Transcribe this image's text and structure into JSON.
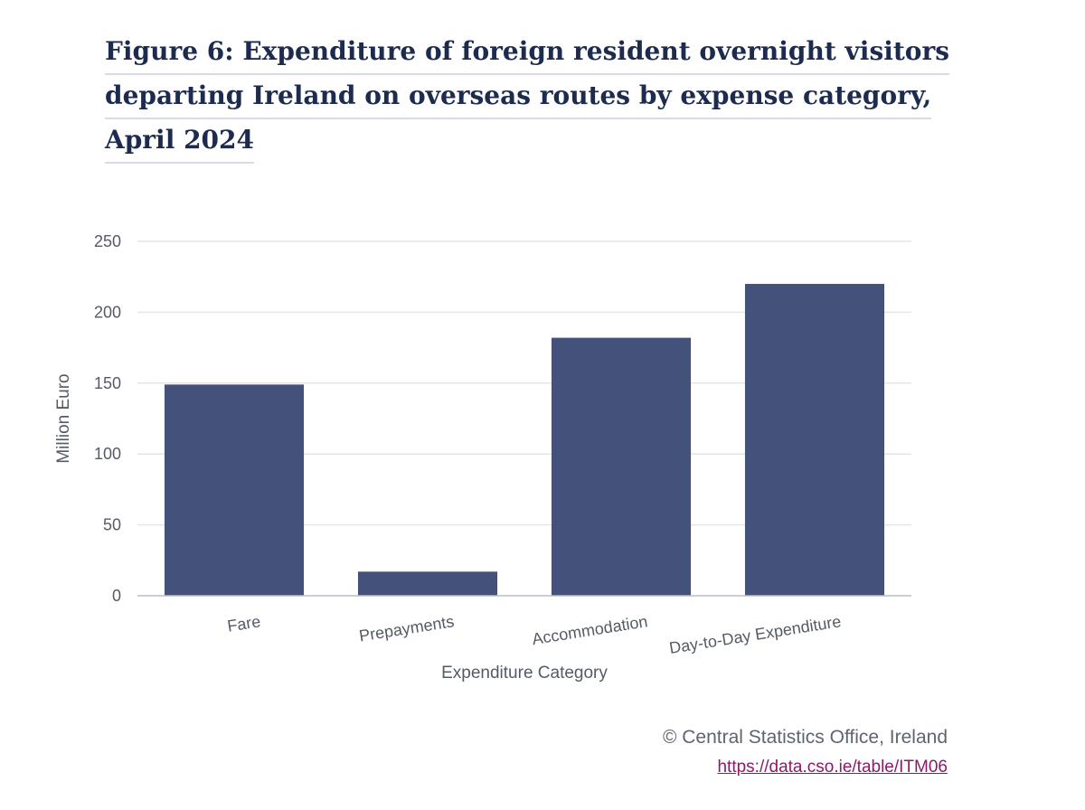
{
  "title_lines": [
    "Figure 6: Expenditure of foreign resident overnight visitors",
    "departing Ireland on overseas routes by expense category,",
    "April 2024"
  ],
  "chart_data": {
    "type": "bar",
    "title": "Figure 6: Expenditure of foreign resident overnight visitors departing Ireland on overseas routes by expense category, April 2024",
    "categories": [
      "Fare",
      "Prepayments",
      "Accommodation",
      "Day-to-Day Expenditure"
    ],
    "values": [
      149,
      17,
      182,
      220
    ],
    "xlabel": "Expenditure Category",
    "ylabel": "Million Euro",
    "ylim": [
      0,
      250
    ],
    "yticks": [
      0,
      50,
      100,
      150,
      200,
      250
    ],
    "grid": true,
    "bar_color": "#44527b"
  },
  "footer": {
    "credit": "© Central Statistics Office, Ireland",
    "source_link": "https://data.cso.ie/table/ITM06"
  }
}
